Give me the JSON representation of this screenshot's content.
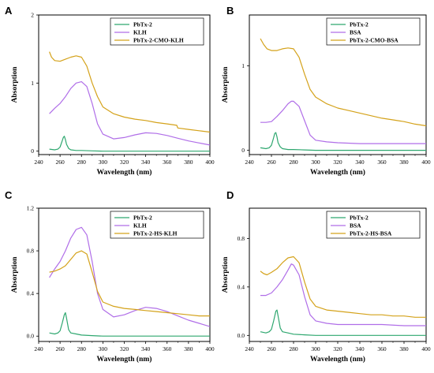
{
  "colors": {
    "green": "#2ea76f",
    "purple": "#b06ee8",
    "gold": "#d4a21a"
  },
  "chart_data": [
    {
      "panel": "A",
      "type": "line",
      "xlabel": "Wavelength (nm)",
      "ylabel": "Absorption",
      "xlim": [
        240,
        400
      ],
      "ylim": [
        -0.05,
        2
      ],
      "xticks": [
        240,
        260,
        280,
        300,
        320,
        340,
        360,
        380,
        400
      ],
      "yticks": [
        0,
        1,
        2
      ],
      "legend_position": "top-right",
      "series": [
        {
          "name": "PbTx-2",
          "color": "#2ea76f",
          "x": [
            250,
            255,
            258,
            260,
            262,
            263,
            264,
            265,
            266,
            268,
            270,
            275,
            280,
            290,
            300,
            320,
            340,
            360,
            380,
            400
          ],
          "y": [
            0.03,
            0.02,
            0.03,
            0.06,
            0.15,
            0.2,
            0.22,
            0.17,
            0.1,
            0.04,
            0.02,
            0.01,
            0.01,
            0.005,
            0.0,
            0.0,
            0.0,
            0.0,
            0.0,
            0.0
          ]
        },
        {
          "name": "KLH",
          "color": "#b06ee8",
          "x": [
            250,
            255,
            260,
            265,
            270,
            275,
            280,
            285,
            290,
            295,
            300,
            310,
            320,
            330,
            340,
            350,
            360,
            370,
            380,
            390,
            400
          ],
          "y": [
            0.55,
            0.63,
            0.7,
            0.8,
            0.92,
            1.0,
            1.02,
            0.95,
            0.7,
            0.4,
            0.25,
            0.18,
            0.2,
            0.24,
            0.27,
            0.26,
            0.23,
            0.19,
            0.15,
            0.12,
            0.09
          ]
        },
        {
          "name": "PbTx-2-CMO-KLH",
          "color": "#d4a21a",
          "x": [
            250,
            252,
            255,
            260,
            265,
            270,
            275,
            280,
            285,
            290,
            295,
            300,
            310,
            320,
            330,
            340,
            350,
            360,
            369,
            370,
            380,
            390,
            400
          ],
          "y": [
            1.46,
            1.38,
            1.33,
            1.32,
            1.35,
            1.38,
            1.4,
            1.38,
            1.25,
            1.0,
            0.8,
            0.65,
            0.55,
            0.5,
            0.47,
            0.45,
            0.42,
            0.4,
            0.38,
            0.34,
            0.32,
            0.3,
            0.28
          ]
        }
      ]
    },
    {
      "panel": "B",
      "type": "line",
      "xlabel": "Wavelength (nm)",
      "ylabel": "Absorption",
      "xlim": [
        240,
        400
      ],
      "ylim": [
        -0.05,
        1.6
      ],
      "xticks": [
        240,
        260,
        280,
        300,
        320,
        340,
        360,
        380,
        400
      ],
      "yticks": [
        0,
        1
      ],
      "legend_position": "top-right",
      "series": [
        {
          "name": "PbTx-2",
          "color": "#2ea76f",
          "x": [
            250,
            255,
            258,
            260,
            262,
            263,
            264,
            265,
            266,
            268,
            270,
            275,
            280,
            290,
            300,
            320,
            340,
            360,
            380,
            400
          ],
          "y": [
            0.03,
            0.02,
            0.03,
            0.06,
            0.15,
            0.2,
            0.21,
            0.16,
            0.09,
            0.04,
            0.02,
            0.01,
            0.01,
            0.005,
            0.0,
            0.0,
            0.0,
            0.0,
            0.0,
            0.0
          ]
        },
        {
          "name": "BSA",
          "color": "#b06ee8",
          "x": [
            250,
            255,
            260,
            265,
            270,
            275,
            278,
            280,
            285,
            290,
            295,
            300,
            310,
            320,
            340,
            360,
            380,
            400
          ],
          "y": [
            0.33,
            0.33,
            0.34,
            0.4,
            0.47,
            0.55,
            0.58,
            0.58,
            0.52,
            0.35,
            0.18,
            0.12,
            0.1,
            0.09,
            0.08,
            0.08,
            0.08,
            0.08
          ]
        },
        {
          "name": "PbTx-2-CMO-BSA",
          "color": "#d4a21a",
          "x": [
            250,
            253,
            256,
            260,
            265,
            270,
            275,
            280,
            285,
            290,
            295,
            300,
            310,
            320,
            330,
            340,
            350,
            360,
            370,
            380,
            390,
            400
          ],
          "y": [
            1.32,
            1.25,
            1.2,
            1.18,
            1.18,
            1.2,
            1.21,
            1.2,
            1.1,
            0.9,
            0.72,
            0.63,
            0.55,
            0.5,
            0.47,
            0.44,
            0.41,
            0.38,
            0.36,
            0.34,
            0.31,
            0.29
          ]
        }
      ]
    },
    {
      "panel": "C",
      "type": "line",
      "xlabel": "Wavelength (nm)",
      "ylabel": "Absorption",
      "xlim": [
        240,
        400
      ],
      "ylim": [
        -0.05,
        1.2
      ],
      "xticks": [
        240,
        260,
        280,
        300,
        320,
        340,
        360,
        380,
        400
      ],
      "yticks": [
        0.0,
        0.4,
        0.8,
        1.2
      ],
      "ytick_labels": [
        "0.0",
        "0.4",
        "0.8",
        "1.2"
      ],
      "legend_position": "top-right",
      "series": [
        {
          "name": "PbTx-2",
          "color": "#2ea76f",
          "x": [
            250,
            255,
            258,
            260,
            262,
            264,
            265,
            266,
            268,
            270,
            275,
            280,
            290,
            300,
            320,
            340,
            360,
            380,
            400
          ],
          "y": [
            0.03,
            0.02,
            0.03,
            0.05,
            0.12,
            0.2,
            0.22,
            0.17,
            0.06,
            0.03,
            0.02,
            0.01,
            0.005,
            0.0,
            0.0,
            0.0,
            0.0,
            0.0,
            0.0
          ]
        },
        {
          "name": "KLH",
          "color": "#b06ee8",
          "x": [
            250,
            255,
            260,
            265,
            270,
            275,
            280,
            285,
            290,
            295,
            300,
            310,
            320,
            330,
            340,
            350,
            360,
            370,
            380,
            390,
            400
          ],
          "y": [
            0.55,
            0.63,
            0.7,
            0.8,
            0.92,
            1.0,
            1.02,
            0.95,
            0.7,
            0.4,
            0.25,
            0.18,
            0.2,
            0.24,
            0.27,
            0.26,
            0.23,
            0.19,
            0.15,
            0.12,
            0.09
          ]
        },
        {
          "name": "PbTx-2-HS-KLH",
          "color": "#d4a21a",
          "x": [
            250,
            255,
            260,
            265,
            270,
            275,
            280,
            285,
            290,
            295,
            300,
            310,
            320,
            330,
            340,
            350,
            360,
            370,
            380,
            390,
            400
          ],
          "y": [
            0.6,
            0.61,
            0.63,
            0.66,
            0.72,
            0.78,
            0.8,
            0.77,
            0.6,
            0.42,
            0.32,
            0.28,
            0.26,
            0.25,
            0.24,
            0.23,
            0.22,
            0.21,
            0.2,
            0.19,
            0.19
          ]
        }
      ]
    },
    {
      "panel": "D",
      "type": "line",
      "xlabel": "Wavelength (nm)",
      "ylabel": "Absorption",
      "xlim": [
        240,
        400
      ],
      "ylim": [
        -0.05,
        1.05
      ],
      "xticks": [
        240,
        260,
        280,
        300,
        320,
        340,
        360,
        380,
        400
      ],
      "yticks": [
        0.0,
        0.4,
        0.8
      ],
      "ytick_labels": [
        "0.0",
        "0.4",
        "0.8"
      ],
      "legend_position": "top-right",
      "series": [
        {
          "name": "PbTx-2",
          "color": "#2ea76f",
          "x": [
            250,
            255,
            258,
            260,
            262,
            264,
            265,
            266,
            268,
            270,
            275,
            280,
            290,
            300,
            320,
            340,
            360,
            380,
            400
          ],
          "y": [
            0.03,
            0.02,
            0.03,
            0.05,
            0.12,
            0.2,
            0.21,
            0.16,
            0.06,
            0.03,
            0.02,
            0.01,
            0.005,
            0.0,
            0.0,
            0.0,
            0.0,
            0.0,
            0.0
          ]
        },
        {
          "name": "BSA",
          "color": "#b06ee8",
          "x": [
            250,
            255,
            260,
            265,
            270,
            275,
            278,
            280,
            285,
            290,
            295,
            300,
            310,
            320,
            340,
            360,
            380,
            400
          ],
          "y": [
            0.33,
            0.33,
            0.35,
            0.4,
            0.46,
            0.54,
            0.59,
            0.58,
            0.5,
            0.32,
            0.17,
            0.12,
            0.1,
            0.09,
            0.09,
            0.09,
            0.08,
            0.08
          ]
        },
        {
          "name": "PbTx-2-HS-BSA",
          "color": "#d4a21a",
          "x": [
            250,
            253,
            256,
            260,
            265,
            270,
            275,
            280,
            285,
            290,
            295,
            300,
            310,
            320,
            330,
            340,
            350,
            360,
            370,
            380,
            390,
            400
          ],
          "y": [
            0.53,
            0.51,
            0.5,
            0.52,
            0.55,
            0.6,
            0.64,
            0.65,
            0.6,
            0.44,
            0.3,
            0.24,
            0.21,
            0.2,
            0.19,
            0.18,
            0.17,
            0.17,
            0.16,
            0.16,
            0.15,
            0.15
          ]
        }
      ]
    }
  ]
}
